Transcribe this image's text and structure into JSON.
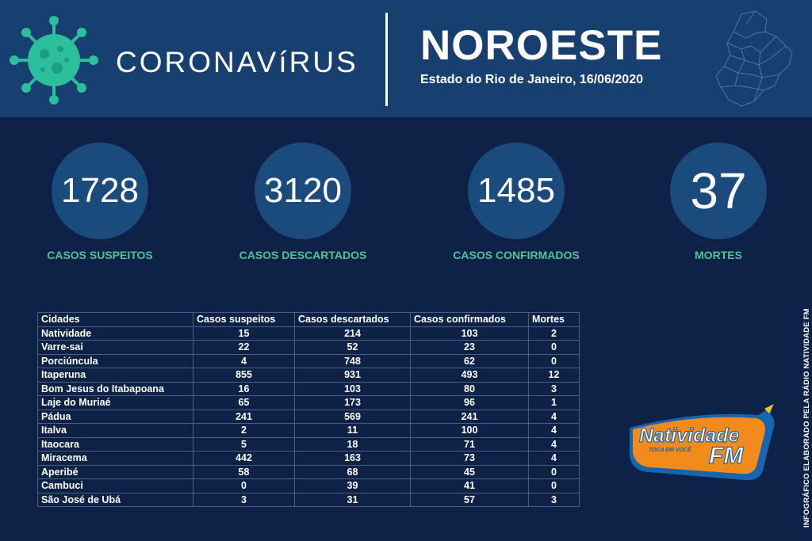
{
  "header": {
    "brand": "CORONAVíRUS",
    "region": "NOROESTE",
    "subtitle": "Estado do Rio de Janeiro, 16/06/2020"
  },
  "stats": [
    {
      "value": "1728",
      "label": "CASOS SUSPEITOS"
    },
    {
      "value": "3120",
      "label": "CASOS DESCARTADOS"
    },
    {
      "value": "1485",
      "label": "CASOS CONFIRMADOS"
    },
    {
      "value": "37",
      "label": "MORTES"
    }
  ],
  "table": {
    "headers": [
      "Cidades",
      "Casos suspeitos",
      "Casos descartados",
      "Casos confirmados",
      "Mortes"
    ],
    "rows": [
      [
        "Natividade",
        "15",
        "214",
        "103",
        "2"
      ],
      [
        "Varre-sai",
        "22",
        "52",
        "23",
        "0"
      ],
      [
        "Porciúncula",
        "4",
        "748",
        "62",
        "0"
      ],
      [
        "Itaperuna",
        "855",
        "931",
        "493",
        "12"
      ],
      [
        "Bom Jesus do Itabapoana",
        "16",
        "103",
        "80",
        "3"
      ],
      [
        "Laje do Muriaé",
        "65",
        "173",
        "96",
        "1"
      ],
      [
        "Pádua",
        "241",
        "569",
        "241",
        "4"
      ],
      [
        "Italva",
        "2",
        "11",
        "100",
        "4"
      ],
      [
        "Itaocara",
        "5",
        "18",
        "71",
        "4"
      ],
      [
        "Miracema",
        "442",
        "163",
        "73",
        "4"
      ],
      [
        "Aperibé",
        "58",
        "68",
        "45",
        "0"
      ],
      [
        "Cambuci",
        "0",
        "39",
        "41",
        "0"
      ],
      [
        "São José de Ubá",
        "3",
        "31",
        "57",
        "3"
      ]
    ]
  },
  "logo": {
    "name_line": "Natividade",
    "tagline": "TOCA EM VOCÊ",
    "fm": "FM"
  },
  "credit": "INFOGRÁFICO ELABORADO PELA RÁDIO NATIVIDADE FM",
  "colors": {
    "background": "#0e2247",
    "header": "#173f70",
    "circle": "#1b4a7c",
    "label_green": "#4fc29a",
    "virus_teal": "#2bbf9e",
    "logo_orange": "#f28a1c",
    "logo_blue": "#1565b0"
  },
  "icons": [
    "coronavirus-icon",
    "region-map-icon"
  ]
}
